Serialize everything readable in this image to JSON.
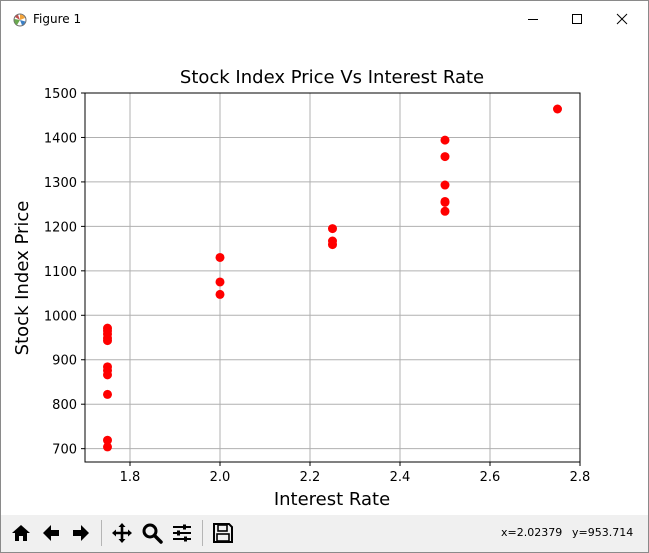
{
  "window": {
    "title": "Figure 1"
  },
  "toolbar": {
    "buttons": [
      {
        "name": "home-icon",
        "label": "Home"
      },
      {
        "name": "back-arrow-icon",
        "label": "Back"
      },
      {
        "name": "forward-arrow-icon",
        "label": "Forward"
      },
      {
        "name": "pan-icon",
        "label": "Pan"
      },
      {
        "name": "zoom-icon",
        "label": "Zoom"
      },
      {
        "name": "configure-subplots-icon",
        "label": "Configure subplots"
      },
      {
        "name": "save-icon",
        "label": "Save"
      }
    ],
    "coord_x": "x=2.02379",
    "coord_y": "y=953.714"
  },
  "colors": {
    "marker": "#ff0000",
    "grid": "#b0b0b0",
    "toolbar_bg": "#f0f0f0"
  },
  "chart_data": {
    "type": "scatter",
    "title": "Stock Index Price Vs Interest Rate",
    "xlabel": "Interest Rate",
    "ylabel": "Stock Index Price",
    "xlim": [
      1.7,
      2.8
    ],
    "ylim": [
      670,
      1500
    ],
    "xticks": [
      1.8,
      2.0,
      2.2,
      2.4,
      2.6,
      2.8
    ],
    "xtick_labels": [
      "1.8",
      "2.0",
      "2.2",
      "2.4",
      "2.6",
      "2.8"
    ],
    "yticks": [
      700,
      800,
      900,
      1000,
      1100,
      1200,
      1300,
      1400,
      1500
    ],
    "ytick_labels": [
      "700",
      "800",
      "900",
      "1000",
      "1100",
      "1200",
      "1300",
      "1400",
      "1500"
    ],
    "grid": true,
    "series": [
      {
        "points": [
          [
            2.75,
            1464
          ],
          [
            2.5,
            1394
          ],
          [
            2.5,
            1357
          ],
          [
            2.5,
            1293
          ],
          [
            2.5,
            1256
          ],
          [
            2.5,
            1254
          ],
          [
            2.5,
            1234
          ],
          [
            2.25,
            1195
          ],
          [
            2.25,
            1159
          ],
          [
            2.25,
            1167
          ],
          [
            2.0,
            1130
          ],
          [
            2.0,
            1075
          ],
          [
            2.0,
            1047
          ],
          [
            1.75,
            965
          ],
          [
            1.75,
            943
          ],
          [
            1.75,
            958
          ],
          [
            1.75,
            971
          ],
          [
            1.75,
            949
          ],
          [
            1.75,
            884
          ],
          [
            1.75,
            866
          ],
          [
            1.75,
            876
          ],
          [
            1.75,
            822
          ],
          [
            1.75,
            704
          ],
          [
            1.75,
            719
          ]
        ]
      }
    ]
  }
}
